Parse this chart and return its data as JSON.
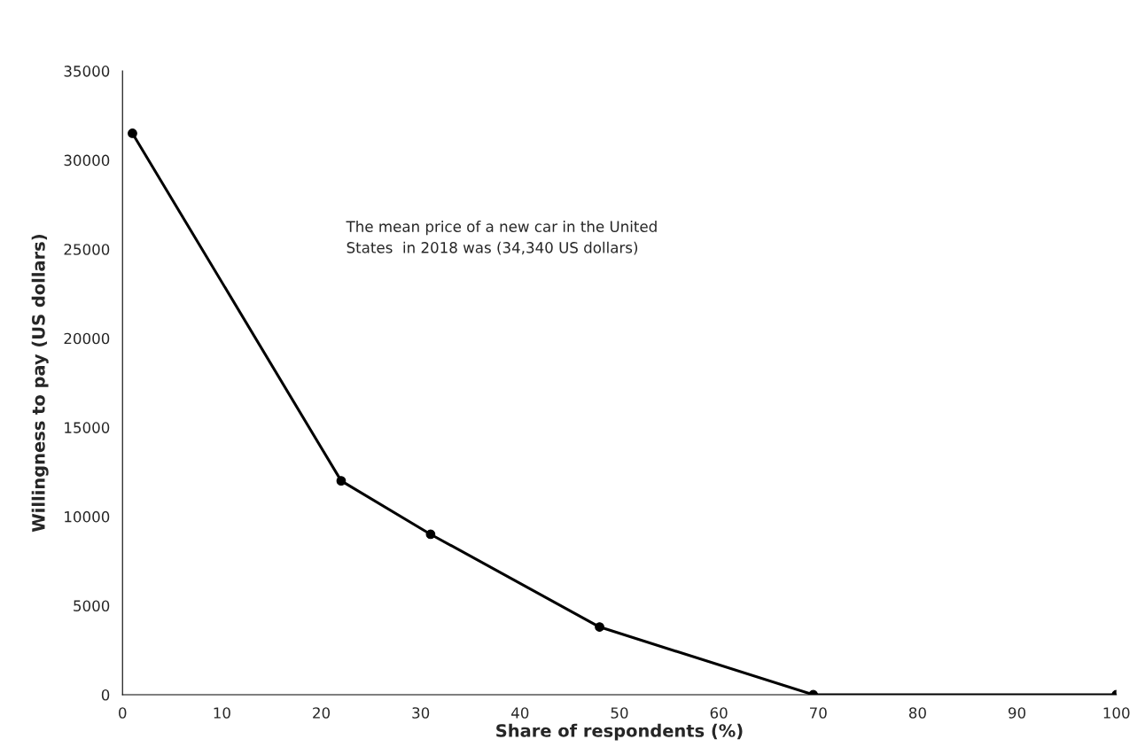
{
  "chart_data": {
    "type": "line",
    "xlabel": "Share of respondents (%)",
    "ylabel": "Willingness to pay (US dollars)",
    "x": [
      1,
      22,
      31,
      48,
      69.5,
      100
    ],
    "series": [
      {
        "color": "#000000",
        "values": [
          31500,
          12000,
          9000,
          3800,
          0,
          0
        ]
      }
    ],
    "xlim": [
      0,
      100
    ],
    "xticks": [
      0,
      10,
      20,
      30,
      40,
      50,
      60,
      70,
      80,
      90,
      100
    ],
    "ylim": [
      0,
      35000
    ],
    "yticks": [
      0,
      5000,
      10000,
      15000,
      20000,
      25000,
      30000,
      35000
    ],
    "marker": "circle",
    "line_style": "solid",
    "grid": false,
    "legend": false,
    "annotations": [
      "The mean price of a new car in the United\nStates  in 2018 was (34,340 US dollars)"
    ]
  }
}
